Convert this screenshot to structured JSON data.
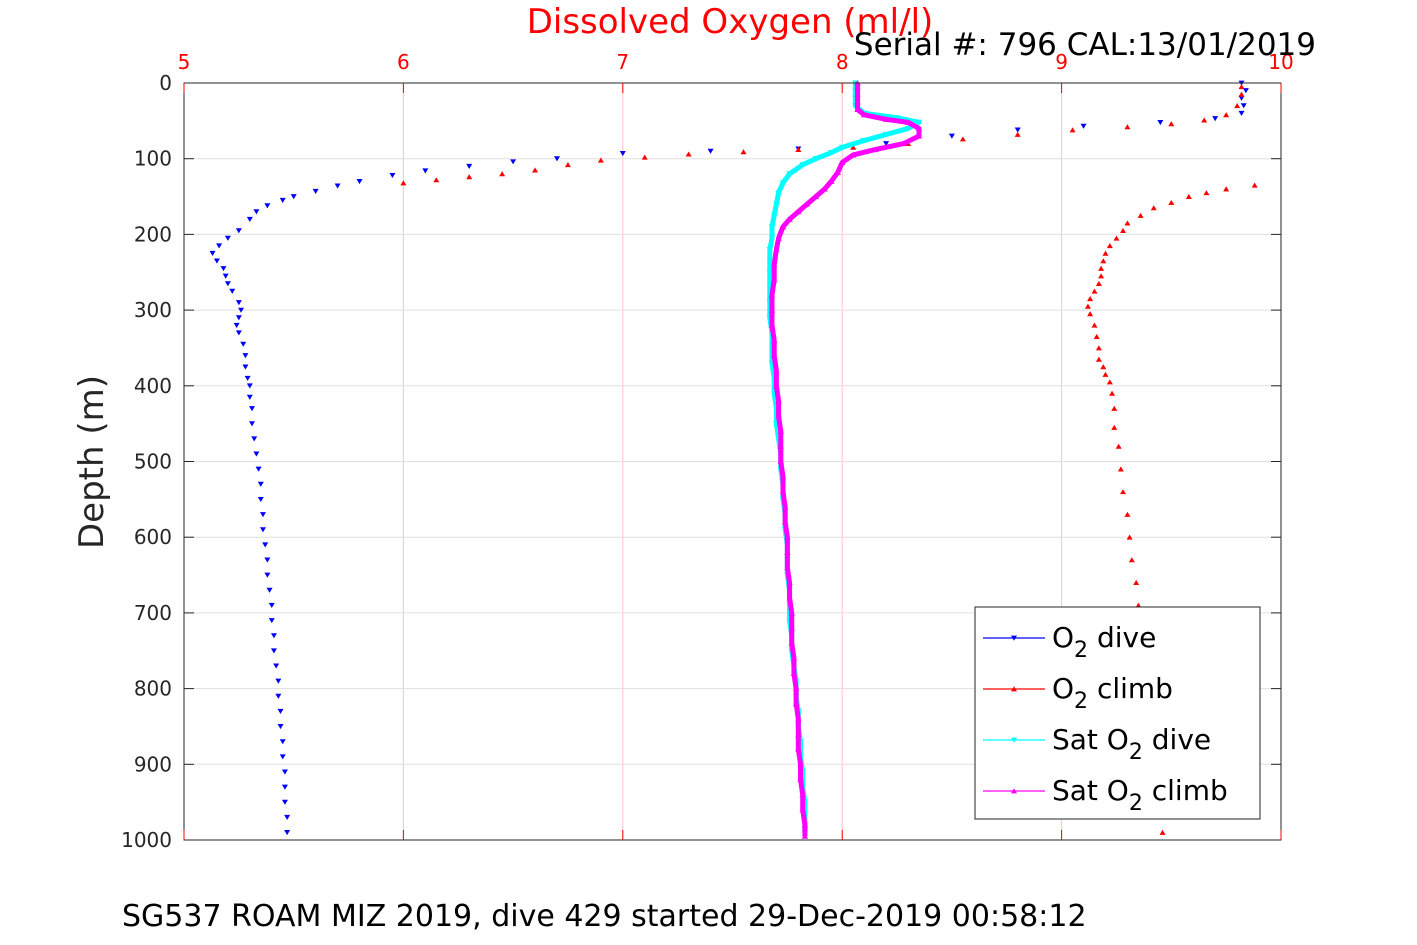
{
  "chart_data": {
    "type": "scatter",
    "title": "Dissolved Oxygen (ml/l)",
    "serial_label": "Serial #: 796  CAL:13/01/2019",
    "ylabel": "Depth (m)",
    "footer": "SG537 ROAM MIZ 2019, dive 429 started 29-Dec-2019 00:58:12",
    "xlim": [
      5,
      10
    ],
    "ylim": [
      0,
      1000
    ],
    "y_reversed": true,
    "x_axis_position": "top",
    "xticks": [
      "5",
      "6",
      "7",
      "8",
      "9",
      "10"
    ],
    "yticks": [
      "0",
      "100",
      "200",
      "300",
      "400",
      "500",
      "600",
      "700",
      "800",
      "900",
      "1000"
    ],
    "grid": true,
    "legend_position": "bottom-right",
    "colors": {
      "title": "#ff0000",
      "x_ticks": "#ff0000",
      "grid": "#ffc0cb",
      "dive": "#0000ff",
      "climb": "#ff0000",
      "sat_dive": "#00ffff",
      "sat_climb": "#ff00ff"
    },
    "series": [
      {
        "name": "O2 dive",
        "legend": {
          "prefix": "O",
          "sub": "2",
          "suffix": " dive"
        },
        "color": "#0000ff",
        "marker": "triangle-down",
        "points": [
          [
            9.82,
            0
          ],
          [
            9.84,
            10
          ],
          [
            9.82,
            20
          ],
          [
            9.83,
            30
          ],
          [
            9.82,
            40
          ],
          [
            9.7,
            47
          ],
          [
            9.45,
            52
          ],
          [
            9.1,
            57
          ],
          [
            8.8,
            62
          ],
          [
            8.5,
            70
          ],
          [
            8.2,
            80
          ],
          [
            7.8,
            87
          ],
          [
            7.4,
            90
          ],
          [
            7.0,
            93
          ],
          [
            6.7,
            100
          ],
          [
            6.5,
            104
          ],
          [
            6.3,
            110
          ],
          [
            6.1,
            116
          ],
          [
            5.95,
            122
          ],
          [
            5.8,
            130
          ],
          [
            5.7,
            136
          ],
          [
            5.6,
            143
          ],
          [
            5.5,
            150
          ],
          [
            5.45,
            155
          ],
          [
            5.38,
            162
          ],
          [
            5.33,
            170
          ],
          [
            5.3,
            180
          ],
          [
            5.25,
            195
          ],
          [
            5.2,
            205
          ],
          [
            5.16,
            215
          ],
          [
            5.13,
            225
          ],
          [
            5.15,
            235
          ],
          [
            5.18,
            245
          ],
          [
            5.19,
            255
          ],
          [
            5.2,
            265
          ],
          [
            5.22,
            275
          ],
          [
            5.25,
            290
          ],
          [
            5.26,
            300
          ],
          [
            5.25,
            310
          ],
          [
            5.24,
            320
          ],
          [
            5.25,
            330
          ],
          [
            5.27,
            345
          ],
          [
            5.28,
            360
          ],
          [
            5.28,
            375
          ],
          [
            5.29,
            390
          ],
          [
            5.3,
            400
          ],
          [
            5.3,
            415
          ],
          [
            5.31,
            430
          ],
          [
            5.31,
            450
          ],
          [
            5.32,
            470
          ],
          [
            5.33,
            490
          ],
          [
            5.34,
            510
          ],
          [
            5.35,
            530
          ],
          [
            5.35,
            550
          ],
          [
            5.36,
            570
          ],
          [
            5.36,
            590
          ],
          [
            5.37,
            610
          ],
          [
            5.38,
            630
          ],
          [
            5.38,
            650
          ],
          [
            5.39,
            670
          ],
          [
            5.4,
            690
          ],
          [
            5.4,
            710
          ],
          [
            5.41,
            730
          ],
          [
            5.41,
            750
          ],
          [
            5.42,
            770
          ],
          [
            5.43,
            790
          ],
          [
            5.43,
            810
          ],
          [
            5.44,
            830
          ],
          [
            5.44,
            850
          ],
          [
            5.45,
            870
          ],
          [
            5.45,
            890
          ],
          [
            5.46,
            910
          ],
          [
            5.46,
            930
          ],
          [
            5.46,
            950
          ],
          [
            5.47,
            970
          ],
          [
            5.47,
            990
          ]
        ]
      },
      {
        "name": "O2 climb",
        "legend": {
          "prefix": "O",
          "sub": "2",
          "suffix": " climb"
        },
        "color": "#ff0000",
        "marker": "triangle-up",
        "points": [
          [
            9.46,
            990
          ],
          [
            9.45,
            960
          ],
          [
            9.44,
            930
          ],
          [
            9.43,
            900
          ],
          [
            9.42,
            870
          ],
          [
            9.41,
            840
          ],
          [
            9.4,
            810
          ],
          [
            9.39,
            780
          ],
          [
            9.38,
            750
          ],
          [
            9.36,
            720
          ],
          [
            9.35,
            690
          ],
          [
            9.34,
            660
          ],
          [
            9.32,
            630
          ],
          [
            9.31,
            600
          ],
          [
            9.3,
            570
          ],
          [
            9.28,
            540
          ],
          [
            9.27,
            510
          ],
          [
            9.26,
            480
          ],
          [
            9.24,
            455
          ],
          [
            9.24,
            430
          ],
          [
            9.23,
            410
          ],
          [
            9.22,
            395
          ],
          [
            9.2,
            385
          ],
          [
            9.19,
            375
          ],
          [
            9.17,
            365
          ],
          [
            9.17,
            350
          ],
          [
            9.16,
            335
          ],
          [
            9.15,
            320
          ],
          [
            9.13,
            305
          ],
          [
            9.12,
            295
          ],
          [
            9.13,
            285
          ],
          [
            9.15,
            275
          ],
          [
            9.17,
            265
          ],
          [
            9.18,
            255
          ],
          [
            9.18,
            245
          ],
          [
            9.19,
            235
          ],
          [
            9.2,
            225
          ],
          [
            9.22,
            215
          ],
          [
            9.25,
            205
          ],
          [
            9.28,
            195
          ],
          [
            9.3,
            185
          ],
          [
            9.36,
            175
          ],
          [
            9.42,
            165
          ],
          [
            9.5,
            158
          ],
          [
            9.58,
            150
          ],
          [
            9.66,
            145
          ],
          [
            9.75,
            140
          ],
          [
            9.88,
            135
          ],
          [
            6.0,
            132
          ],
          [
            6.15,
            128
          ],
          [
            6.3,
            124
          ],
          [
            6.45,
            120
          ],
          [
            6.6,
            115
          ],
          [
            6.75,
            108
          ],
          [
            6.9,
            102
          ],
          [
            7.1,
            98
          ],
          [
            7.3,
            94
          ],
          [
            7.55,
            91
          ],
          [
            7.8,
            88
          ],
          [
            8.05,
            85
          ],
          [
            8.3,
            80
          ],
          [
            8.55,
            74
          ],
          [
            8.8,
            68
          ],
          [
            9.05,
            62
          ],
          [
            9.3,
            58
          ],
          [
            9.5,
            54
          ],
          [
            9.65,
            49
          ],
          [
            9.75,
            42
          ],
          [
            9.8,
            30
          ],
          [
            9.82,
            15
          ],
          [
            9.82,
            5
          ]
        ]
      },
      {
        "name": "Sat O2 dive",
        "legend": {
          "prefix": "Sat O",
          "sub": "2",
          "suffix": " dive"
        },
        "color": "#00ffff",
        "marker": "triangle-down",
        "points": [
          [
            8.06,
            0
          ],
          [
            8.06,
            10
          ],
          [
            8.06,
            20
          ],
          [
            8.06,
            30
          ],
          [
            8.1,
            40
          ],
          [
            8.25,
            46
          ],
          [
            8.35,
            52
          ],
          [
            8.3,
            60
          ],
          [
            8.2,
            68
          ],
          [
            8.1,
            76
          ],
          [
            8.0,
            85
          ],
          [
            7.95,
            92
          ],
          [
            7.88,
            100
          ],
          [
            7.82,
            108
          ],
          [
            7.76,
            120
          ],
          [
            7.73,
            132
          ],
          [
            7.71,
            145
          ],
          [
            7.7,
            160
          ],
          [
            7.69,
            175
          ],
          [
            7.68,
            190
          ],
          [
            7.68,
            205
          ],
          [
            7.67,
            220
          ],
          [
            7.67,
            235
          ],
          [
            7.67,
            250
          ],
          [
            7.67,
            270
          ],
          [
            7.67,
            290
          ],
          [
            7.67,
            310
          ],
          [
            7.68,
            330
          ],
          [
            7.68,
            350
          ],
          [
            7.68,
            370
          ],
          [
            7.69,
            390
          ],
          [
            7.69,
            410
          ],
          [
            7.7,
            430
          ],
          [
            7.7,
            450
          ],
          [
            7.71,
            470
          ],
          [
            7.72,
            490
          ],
          [
            7.72,
            510
          ],
          [
            7.73,
            530
          ],
          [
            7.73,
            550
          ],
          [
            7.74,
            570
          ],
          [
            7.74,
            590
          ],
          [
            7.75,
            610
          ],
          [
            7.75,
            630
          ],
          [
            7.75,
            650
          ],
          [
            7.76,
            670
          ],
          [
            7.76,
            690
          ],
          [
            7.76,
            710
          ],
          [
            7.77,
            730
          ],
          [
            7.77,
            750
          ],
          [
            7.78,
            770
          ],
          [
            7.79,
            790
          ],
          [
            7.79,
            810
          ],
          [
            7.8,
            830
          ],
          [
            7.8,
            850
          ],
          [
            7.81,
            870
          ],
          [
            7.81,
            890
          ],
          [
            7.82,
            910
          ],
          [
            7.82,
            930
          ],
          [
            7.83,
            950
          ],
          [
            7.83,
            970
          ],
          [
            7.83,
            990
          ]
        ]
      },
      {
        "name": "Sat O2 climb",
        "legend": {
          "prefix": "Sat O",
          "sub": "2",
          "suffix": " climb"
        },
        "color": "#ff00ff",
        "marker": "triangle-up",
        "points": [
          [
            7.83,
            995
          ],
          [
            7.83,
            980
          ],
          [
            7.82,
            960
          ],
          [
            7.82,
            940
          ],
          [
            7.81,
            920
          ],
          [
            7.81,
            900
          ],
          [
            7.8,
            880
          ],
          [
            7.8,
            860
          ],
          [
            7.8,
            840
          ],
          [
            7.79,
            820
          ],
          [
            7.79,
            800
          ],
          [
            7.78,
            780
          ],
          [
            7.78,
            760
          ],
          [
            7.77,
            740
          ],
          [
            7.77,
            720
          ],
          [
            7.77,
            700
          ],
          [
            7.76,
            680
          ],
          [
            7.76,
            660
          ],
          [
            7.75,
            640
          ],
          [
            7.75,
            620
          ],
          [
            7.75,
            600
          ],
          [
            7.74,
            580
          ],
          [
            7.74,
            560
          ],
          [
            7.73,
            540
          ],
          [
            7.73,
            520
          ],
          [
            7.72,
            500
          ],
          [
            7.72,
            480
          ],
          [
            7.72,
            460
          ],
          [
            7.71,
            440
          ],
          [
            7.71,
            420
          ],
          [
            7.7,
            400
          ],
          [
            7.7,
            380
          ],
          [
            7.69,
            360
          ],
          [
            7.69,
            340
          ],
          [
            7.68,
            320
          ],
          [
            7.68,
            300
          ],
          [
            7.68,
            280
          ],
          [
            7.69,
            260
          ],
          [
            7.69,
            240
          ],
          [
            7.7,
            220
          ],
          [
            7.71,
            205
          ],
          [
            7.73,
            190
          ],
          [
            7.76,
            180
          ],
          [
            7.8,
            170
          ],
          [
            7.84,
            160
          ],
          [
            7.88,
            150
          ],
          [
            7.92,
            140
          ],
          [
            7.95,
            130
          ],
          [
            7.98,
            118
          ],
          [
            8.0,
            105
          ],
          [
            8.05,
            95
          ],
          [
            8.15,
            88
          ],
          [
            8.28,
            80
          ],
          [
            8.35,
            70
          ],
          [
            8.35,
            60
          ],
          [
            8.3,
            52
          ],
          [
            8.2,
            48
          ],
          [
            8.1,
            42
          ],
          [
            8.07,
            35
          ],
          [
            8.07,
            25
          ],
          [
            8.07,
            15
          ],
          [
            8.07,
            5
          ],
          [
            8.07,
            0
          ]
        ]
      }
    ]
  }
}
